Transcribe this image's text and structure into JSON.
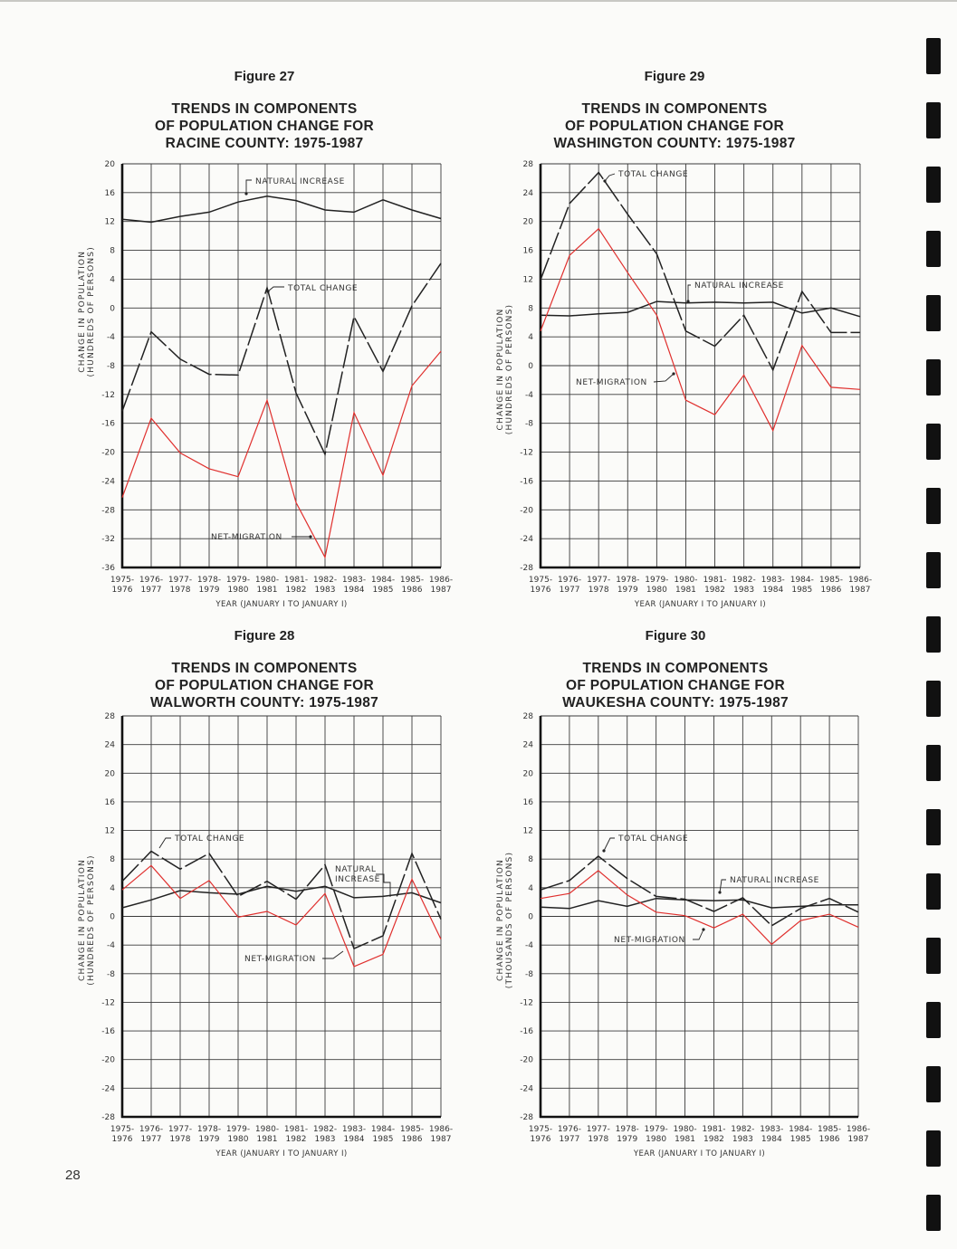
{
  "page_number": "28",
  "colors": {
    "natural_increase": "#222222",
    "total_change": "#222222",
    "net_migration": "#e0302e",
    "grid": "#333333"
  },
  "chart_data": [
    {
      "id": "fig27",
      "type": "line",
      "figure_label": "Figure 27",
      "title_lines": [
        "TRENDS IN COMPONENTS",
        "OF POPULATION CHANGE FOR",
        "RACINE COUNTY: 1975-1987"
      ],
      "xlabel": "YEAR (JANUARY I TO JANUARY I)",
      "ylabel_lines": [
        "CHANGE IN POPULATION",
        "(HUNDREDS OF PERSONS)"
      ],
      "ylim": [
        -36,
        20
      ],
      "yticks": [
        20,
        16,
        12,
        8,
        4,
        0,
        -4,
        -8,
        -12,
        -16,
        -20,
        -24,
        -28,
        -32,
        -36
      ],
      "ytick_labels": [
        "20",
        "16",
        "12",
        "8",
        "4",
        "0",
        "-4",
        "-8",
        "-12",
        "-16",
        "-20",
        "-24",
        "-28",
        "-32",
        "-36"
      ],
      "categories_top": [
        "1975-",
        "1976-",
        "1977-",
        "1978-",
        "1979-",
        "1980-",
        "1981-",
        "1982-",
        "1983-",
        "1984-",
        "1985-",
        "1986-"
      ],
      "categories_bottom": [
        "1976",
        "1977",
        "1978",
        "1979",
        "1980",
        "1981",
        "1982",
        "1983",
        "1984",
        "1985",
        "1986",
        "1987"
      ],
      "grid": true,
      "series": [
        {
          "name": "NATURAL INCREASE",
          "style": "solid",
          "color": "#222222",
          "values": [
            12.3,
            11.9,
            12.7,
            13.3,
            14.7,
            15.5,
            14.9,
            13.6,
            13.3,
            15.0,
            13.6,
            12.4
          ]
        },
        {
          "name": "TOTAL CHANGE",
          "style": "dashed",
          "color": "#222222",
          "values": [
            -14.3,
            -3.3,
            -7.1,
            -9.2,
            -9.3,
            2.8,
            -11.8,
            -20.3,
            -1.2,
            -8.8,
            0.3,
            6.2
          ]
        },
        {
          "name": "NET-MIGRATION",
          "style": "solid",
          "color": "#e0302e",
          "values": [
            -26.3,
            -15.3,
            -20.1,
            -22.3,
            -23.4,
            -12.8,
            -27.0,
            -34.6,
            -14.5,
            -23.2,
            -10.8,
            -6.0
          ]
        }
      ],
      "annotations": [
        {
          "text": "NATURAL INCREASE",
          "series": 0
        },
        {
          "text": "TOTAL CHANGE",
          "series": 1
        },
        {
          "text": "NET-MIGRATION",
          "series": 2
        }
      ]
    },
    {
      "id": "fig29",
      "type": "line",
      "figure_label": "Figure 29",
      "title_lines": [
        "TRENDS IN COMPONENTS",
        "OF POPULATION CHANGE FOR",
        "WASHINGTON COUNTY: 1975-1987"
      ],
      "xlabel": "YEAR (JANUARY I TO JANUARY I)",
      "ylabel_lines": [
        "CHANGE IN POPULATION",
        "(HUNDREDS OF PERSONS)"
      ],
      "ylim": [
        -28,
        28
      ],
      "yticks": [
        28,
        24,
        20,
        16,
        12,
        8,
        4,
        0,
        -4,
        -8,
        -12,
        -16,
        -20,
        -24,
        -28
      ],
      "ytick_labels": [
        "28",
        "24",
        "20",
        "16",
        "12",
        "8",
        "4",
        "0",
        "-4",
        "-8",
        "-12",
        "-16",
        "-20",
        "-24",
        "-28"
      ],
      "categories_top": [
        "1975-",
        "1976-",
        "1977-",
        "1978-",
        "1979-",
        "1980-",
        "1981-",
        "1982-",
        "1983-",
        "1984-",
        "1985-",
        "1986-"
      ],
      "categories_bottom": [
        "1976",
        "1977",
        "1978",
        "1979",
        "1980",
        "1981",
        "1982",
        "1983",
        "1984",
        "1985",
        "1986",
        "1987"
      ],
      "grid": true,
      "series": [
        {
          "name": "NATURAL INCREASE",
          "style": "solid",
          "color": "#222222",
          "values": [
            7.0,
            6.9,
            7.2,
            7.4,
            8.9,
            8.7,
            8.8,
            8.7,
            8.8,
            7.3,
            8.0,
            6.8
          ]
        },
        {
          "name": "TOTAL CHANGE",
          "style": "dashed",
          "color": "#222222",
          "values": [
            11.9,
            22.5,
            26.8,
            21.0,
            15.5,
            4.8,
            2.7,
            7.0,
            -0.6,
            10.3,
            4.6,
            4.6
          ]
        },
        {
          "name": "NET-MIGRATION",
          "style": "solid",
          "color": "#e0302e",
          "values": [
            4.8,
            15.3,
            19.0,
            12.9,
            7.0,
            -4.8,
            -6.8,
            -1.3,
            -9.0,
            2.8,
            -3.0,
            -3.3
          ]
        }
      ],
      "annotations": [
        {
          "text": "TOTAL CHANGE",
          "series": 1
        },
        {
          "text": "NATURAL INCREASE",
          "series": 0
        },
        {
          "text": "NET-MIGRATION",
          "series": 2
        }
      ]
    },
    {
      "id": "fig28",
      "type": "line",
      "figure_label": "Figure 28",
      "title_lines": [
        "TRENDS IN COMPONENTS",
        "OF POPULATION CHANGE FOR",
        "WALWORTH COUNTY: 1975-1987"
      ],
      "xlabel": "YEAR (JANUARY I TO JANUARY I)",
      "ylabel_lines": [
        "CHANGE IN POPULATION",
        "(HUNDREDS OF PERSONS)"
      ],
      "ylim": [
        -28,
        28
      ],
      "yticks": [
        28,
        24,
        20,
        16,
        12,
        8,
        4,
        0,
        -4,
        -8,
        -12,
        -16,
        -20,
        -24,
        -28
      ],
      "ytick_labels": [
        "28",
        "24",
        "20",
        "16",
        "12",
        "8",
        "4",
        "0",
        "-4",
        "-8",
        "-12",
        "-16",
        "-20",
        "-24",
        "-28"
      ],
      "categories_top": [
        "1975-",
        "1976-",
        "1977-",
        "1978-",
        "1979-",
        "1980-",
        "1981-",
        "1982-",
        "1983-",
        "1984-",
        "1985-",
        "1986-"
      ],
      "categories_bottom": [
        "1976",
        "1977",
        "1978",
        "1979",
        "1980",
        "1981",
        "1982",
        "1983",
        "1984",
        "1985",
        "1986",
        "1987"
      ],
      "grid": true,
      "series": [
        {
          "name": "NATURAL INCREASE",
          "style": "solid",
          "color": "#222222",
          "values": [
            1.2,
            2.3,
            3.6,
            3.3,
            3.1,
            4.2,
            3.5,
            4.2,
            2.6,
            2.8,
            3.3,
            1.9
          ]
        },
        {
          "name": "TOTAL CHANGE",
          "style": "dashed",
          "color": "#222222",
          "values": [
            4.9,
            9.1,
            6.6,
            8.8,
            2.8,
            4.9,
            2.4,
            7.2,
            -4.5,
            -2.7,
            8.8,
            -0.4
          ]
        },
        {
          "name": "NET-MIGRATION",
          "style": "solid",
          "color": "#e0302e",
          "values": [
            3.7,
            7.1,
            2.5,
            5.0,
            -0.1,
            0.7,
            -1.2,
            3.2,
            -7.0,
            -5.3,
            5.2,
            -3.2
          ]
        }
      ],
      "annotations": [
        {
          "text": "TOTAL CHANGE",
          "series": 1
        },
        {
          "text": "NATURAL",
          "series": 0
        },
        {
          "text": "INCREASE",
          "series": 0
        },
        {
          "text": "NET-MIGRATION",
          "series": 2
        }
      ]
    },
    {
      "id": "fig30",
      "type": "line",
      "figure_label": "Figure 30",
      "title_lines": [
        "TRENDS IN COMPONENTS",
        "OF POPULATION CHANGE FOR",
        "WAUKESHA COUNTY: 1975-1987"
      ],
      "xlabel": "YEAR (JANUARY I TO JANUARY I)",
      "ylabel_lines": [
        "CHANGE IN POPULATION",
        "(THOUSANDS OF PERSONS)"
      ],
      "ylim": [
        -28,
        28
      ],
      "yticks": [
        28,
        24,
        20,
        16,
        12,
        8,
        4,
        0,
        -4,
        -8,
        -12,
        -16,
        -20,
        -24,
        -28
      ],
      "ytick_labels": [
        "28",
        "24",
        "20",
        "16",
        "12",
        "8",
        "4",
        "0",
        "-4",
        "-8",
        "-12",
        "-16",
        "-20",
        "-24",
        "-28"
      ],
      "categories_top": [
        "1975-",
        "1976-",
        "1977-",
        "1978-",
        "1979-",
        "1980-",
        "1981-",
        "1982-",
        "1983-",
        "1984-",
        "1985-",
        "1986-"
      ],
      "categories_bottom": [
        "1976",
        "1977",
        "1978",
        "1979",
        "1980",
        "1981",
        "1982",
        "1983",
        "1984",
        "1985",
        "1986",
        "1987"
      ],
      "grid": true,
      "series": [
        {
          "name": "NATURAL INCREASE",
          "style": "solid",
          "color": "#222222",
          "values": [
            1.3,
            1.1,
            2.2,
            1.4,
            2.5,
            2.3,
            2.2,
            2.3,
            1.2,
            1.4,
            1.6,
            1.6
          ]
        },
        {
          "name": "TOTAL CHANGE",
          "style": "dashed",
          "color": "#222222",
          "values": [
            3.7,
            5.0,
            8.4,
            5.3,
            2.8,
            2.4,
            0.7,
            2.6,
            -1.3,
            1.1,
            2.5,
            0.6
          ]
        },
        {
          "name": "NET-MIGRATION",
          "style": "solid",
          "color": "#e0302e",
          "values": [
            2.5,
            3.2,
            6.4,
            3.0,
            0.6,
            0.1,
            -1.6,
            0.3,
            -3.9,
            -0.6,
            0.3,
            -1.5
          ]
        }
      ],
      "annotations": [
        {
          "text": "TOTAL CHANGE",
          "series": 1
        },
        {
          "text": "NATURAL INCREASE",
          "series": 0
        },
        {
          "text": "NET-MIGRATION",
          "series": 2
        }
      ]
    }
  ]
}
